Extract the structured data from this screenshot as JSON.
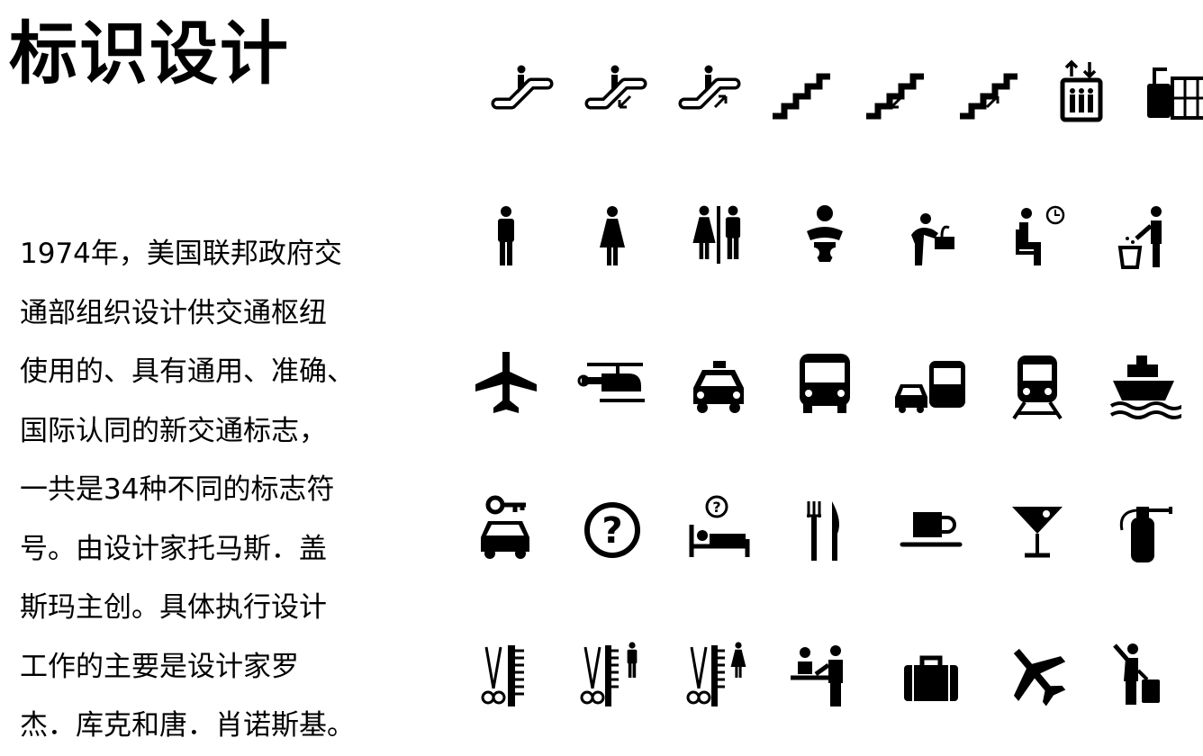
{
  "slide": {
    "title": "标识设计",
    "body_lines": [
      "1974年，美国联邦政府交",
      "通部组织设计供交通枢纽",
      "使用的、具有通用、准确、",
      "国际认同的新交通标志，",
      "一共是34种不同的标志符",
      "号。由设计家托马斯．盖",
      "斯玛主创。具体执行设计",
      "工作的主要是设计家罗",
      "杰．库克和唐．肖诺斯基。"
    ]
  },
  "icons": {
    "color": "#000000",
    "rows": [
      [
        "escalator-icon",
        "escalator-down-icon",
        "escalator-up-icon",
        "stairs-icon",
        "stairs-down-icon",
        "stairs-up-icon",
        "elevator-icon",
        "lockers-icon"
      ],
      [
        "men-toilet-icon",
        "women-toilet-icon",
        "toilets-icon",
        "nursery-icon",
        "drinking-fountain-icon",
        "waiting-room-icon",
        "litter-icon"
      ],
      [
        "air-transportation-icon",
        "heliport-icon",
        "taxi-icon",
        "bus-icon",
        "ground-transportation-icon",
        "rail-transportation-icon",
        "water-transportation-icon"
      ],
      [
        "car-rental-icon",
        "information-icon",
        "hotel-information-icon",
        "restaurant-icon",
        "coffee-shop-icon",
        "bar-icon",
        "fire-extinguisher-icon"
      ],
      [
        "barber-shop-icon",
        "barber-shop-men-icon",
        "beauty-salon-icon",
        "ticket-purchase-icon",
        "baggage-lockers-icon",
        "departing-flights-icon",
        "porter-icon"
      ]
    ]
  }
}
